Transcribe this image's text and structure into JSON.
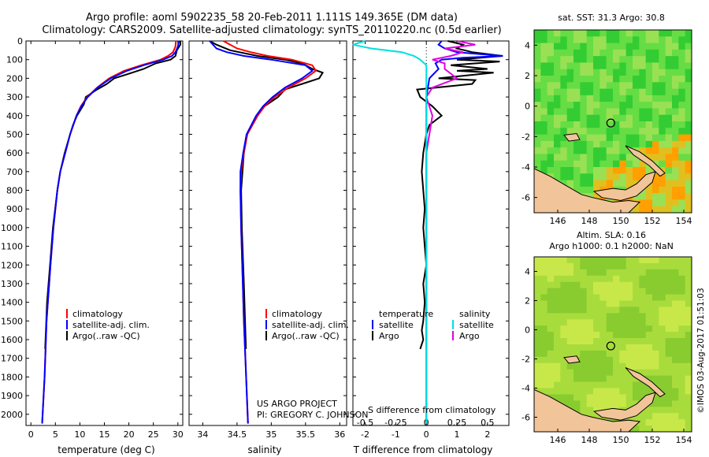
{
  "header": {
    "title_line1": "Argo profile: aoml 5902235_58 20-Feb-2011 1.111S 149.365E (DM data)",
    "title_line2": "Climatology: CARS2009. Satellite-adjusted climatology: synTS_20110220.nc (0.5d earlier)"
  },
  "colors": {
    "climatology": "#ff0000",
    "satellite": "#0000ff",
    "argo": "#000000",
    "salinity_satellite": "#00e0e0",
    "salinity_argo": "#e000e0",
    "land": "#f2c49a",
    "sst_warm": "#ff9900",
    "sst_green": "#33cc33"
  },
  "chart_data": [
    {
      "type": "line",
      "title": "",
      "xlabel": "temperature (deg C)",
      "ylabel": "",
      "xlim": [
        -1,
        31
      ],
      "ylim": [
        2060,
        0
      ],
      "xticks": [
        0,
        5,
        10,
        15,
        20,
        25,
        30
      ],
      "yticks": [
        0,
        100,
        200,
        300,
        400,
        500,
        600,
        700,
        800,
        900,
        1000,
        1100,
        1200,
        1300,
        1400,
        1500,
        1600,
        1700,
        1800,
        1900,
        2000
      ],
      "legend": [
        "climatology",
        "satellite-adj. clim.",
        "Argo(..raw -QC)"
      ],
      "series": [
        {
          "name": "climatology",
          "depth": [
            0,
            30,
            60,
            80,
            100,
            130,
            160,
            200,
            250,
            300,
            350,
            400,
            500,
            600,
            700,
            800,
            1000,
            1200,
            1500,
            1800,
            2050
          ],
          "values": [
            29.6,
            29.5,
            29.0,
            28.0,
            26.5,
            22.5,
            19.0,
            16.0,
            13.5,
            11.5,
            10.2,
            9.3,
            8.0,
            7.0,
            6.0,
            5.4,
            4.6,
            4.0,
            3.2,
            2.8,
            2.3
          ]
        },
        {
          "name": "satellite-adj. clim.",
          "depth": [
            0,
            30,
            60,
            80,
            100,
            130,
            160,
            200,
            250,
            300,
            350,
            400,
            500,
            600,
            700,
            800,
            1000,
            1200,
            1500,
            1800,
            2050
          ],
          "values": [
            30.2,
            30.0,
            29.5,
            28.8,
            27.0,
            23.0,
            19.6,
            16.3,
            13.6,
            11.6,
            10.3,
            9.3,
            8.0,
            7.0,
            6.0,
            5.4,
            4.6,
            4.0,
            3.2,
            2.8,
            2.3
          ]
        },
        {
          "name": "Argo(..raw -QC)",
          "depth": [
            0,
            20,
            50,
            80,
            100,
            120,
            150,
            180,
            200,
            230,
            260,
            300,
            340,
            400,
            450,
            500,
            600,
            700,
            800,
            1000,
            1200,
            1400,
            1650
          ],
          "values": [
            30.5,
            30.5,
            29.8,
            29.5,
            28.5,
            25.5,
            23.0,
            19.5,
            17.0,
            15.5,
            13.5,
            11.2,
            10.8,
            9.4,
            8.6,
            8.0,
            6.9,
            6.0,
            5.4,
            4.5,
            3.9,
            3.3,
            2.9
          ]
        }
      ]
    },
    {
      "type": "line",
      "title": "",
      "xlabel": "salinity",
      "ylabel": "",
      "xlim": [
        33.8,
        36.1
      ],
      "ylim": [
        2060,
        0
      ],
      "xticks": [
        34,
        34.5,
        35,
        35.5,
        36
      ],
      "legend": [
        "climatology",
        "satellite-adj. clim.",
        "Argo(..raw -QC)"
      ],
      "series": [
        {
          "name": "climatology",
          "depth": [
            0,
            20,
            40,
            60,
            80,
            100,
            130,
            160,
            200,
            250,
            300,
            350,
            400,
            500,
            600,
            700,
            800,
            1000,
            1500,
            2050
          ],
          "values": [
            34.3,
            34.4,
            34.5,
            34.7,
            34.95,
            35.3,
            35.6,
            35.65,
            35.5,
            35.25,
            35.05,
            34.9,
            34.8,
            34.65,
            34.6,
            34.56,
            34.55,
            34.56,
            34.6,
            34.66
          ]
        },
        {
          "name": "satellite-adj. clim.",
          "depth": [
            0,
            20,
            40,
            60,
            80,
            100,
            130,
            160,
            200,
            250,
            300,
            350,
            400,
            500,
            600,
            700,
            800,
            1000,
            1500,
            2050
          ],
          "values": [
            34.1,
            34.15,
            34.2,
            34.35,
            34.6,
            35.0,
            35.5,
            35.6,
            35.45,
            35.2,
            35.02,
            34.88,
            34.78,
            34.64,
            34.59,
            34.55,
            34.55,
            34.56,
            34.6,
            34.66
          ]
        },
        {
          "name": "Argo(..raw -QC)",
          "depth": [
            0,
            20,
            50,
            80,
            100,
            120,
            150,
            170,
            200,
            230,
            260,
            300,
            350,
            400,
            500,
            600,
            800,
            1000,
            1300,
            1650
          ],
          "values": [
            34.1,
            34.2,
            34.4,
            34.8,
            35.2,
            35.45,
            35.6,
            35.75,
            35.7,
            35.45,
            35.2,
            35.1,
            34.9,
            34.8,
            34.65,
            34.6,
            34.56,
            34.57,
            34.6,
            34.63
          ]
        }
      ]
    },
    {
      "type": "line",
      "title": "",
      "xlabel": "T difference from climatology",
      "xlabel_top": "S difference from climatology",
      "xlim": [
        -2.4,
        2.7
      ],
      "ylim": [
        2060,
        0
      ],
      "xticks": [
        -2,
        -1,
        0,
        1,
        2
      ],
      "xticks_s": [
        -0.5,
        -0.25,
        0,
        0.25,
        0.5
      ],
      "legend_temperature": [
        "temperature",
        "satellite",
        "Argo"
      ],
      "legend_salinity": [
        "salinity",
        "satellite",
        "Argo"
      ],
      "series": [
        {
          "name": "temperature satellite",
          "depth": [
            0,
            20,
            40,
            60,
            80,
            90,
            100,
            120,
            150,
            200,
            300,
            600,
            2050
          ],
          "values": [
            0.5,
            0.4,
            0.6,
            1.0,
            2.5,
            1.2,
            0.5,
            0.3,
            0.4,
            0.1,
            0.0,
            0.0,
            0.0
          ]
        },
        {
          "name": "temperature Argo",
          "depth": [
            0,
            20,
            40,
            60,
            80,
            100,
            110,
            130,
            150,
            160,
            170,
            200,
            210,
            230,
            260,
            300,
            350,
            400,
            450,
            500,
            600,
            700,
            800,
            900,
            1000,
            1100,
            1200,
            1300,
            1400,
            1500,
            1550,
            1600,
            1650
          ],
          "values": [
            0.7,
            1.2,
            1.0,
            1.5,
            2.5,
            1.0,
            2.4,
            0.8,
            2.0,
            1.0,
            2.2,
            0.4,
            1.6,
            1.5,
            -0.3,
            -0.2,
            0.2,
            0.5,
            0.1,
            0.0,
            -0.1,
            -0.15,
            -0.1,
            -0.05,
            -0.1,
            -0.05,
            0.0,
            -0.1,
            -0.05,
            -0.1,
            -0.15,
            -0.1,
            -0.2
          ]
        },
        {
          "name": "salinity satellite",
          "depth": [
            0,
            20,
            40,
            60,
            80,
            100,
            130,
            160,
            200,
            300,
            500,
            800,
            1000,
            1500,
            2050
          ],
          "values": [
            -0.5,
            -0.6,
            -0.45,
            -0.2,
            -0.1,
            -0.05,
            0.0,
            0.0,
            0.0,
            0.0,
            0.0,
            0.0,
            0.0,
            0.0,
            0.0
          ]
        },
        {
          "name": "salinity Argo",
          "depth": [
            0,
            20,
            40,
            60,
            80,
            100,
            120,
            150,
            200,
            250,
            300,
            400,
            600,
            800,
            1200,
            1650
          ],
          "values": [
            0.25,
            0.4,
            0.15,
            0.3,
            0.2,
            0.05,
            0.15,
            0.15,
            0.25,
            0.05,
            0.0,
            0.05,
            0.0,
            0.0,
            0.0,
            0.0
          ]
        }
      ]
    },
    {
      "type": "heatmap",
      "title": "sat. SST: 31.3 Argo: 30.8",
      "xticks": [
        146,
        148,
        150,
        152,
        154
      ],
      "yticks": [
        4,
        2,
        0,
        -2,
        -4,
        -6
      ],
      "xlim": [
        144.5,
        154.5
      ],
      "ylim": [
        -7,
        5
      ],
      "float_position": {
        "lon": 149.365,
        "lat": -1.111
      }
    },
    {
      "type": "heatmap",
      "title_line1": "Altim. SLA: 0.16",
      "title_line2": "Argo h1000: 0.1 h2000: NaN",
      "xticks": [
        146,
        148,
        150,
        152,
        154
      ],
      "yticks": [
        4,
        2,
        0,
        -2,
        -4,
        -6
      ],
      "xlim": [
        144.5,
        154.5
      ],
      "ylim": [
        -7,
        5
      ],
      "float_position": {
        "lon": 149.365,
        "lat": -1.111
      }
    }
  ],
  "annotations": {
    "project_line1": "US ARGO PROJECT",
    "project_line2": "PI: GREGORY C. JOHNSON",
    "side_stamp": "©IMOS 03-Aug-2017 01:51:03"
  }
}
